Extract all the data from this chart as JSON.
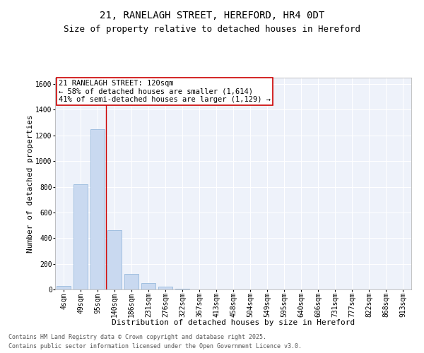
{
  "title_line1": "21, RANELAGH STREET, HEREFORD, HR4 0DT",
  "title_line2": "Size of property relative to detached houses in Hereford",
  "xlabel": "Distribution of detached houses by size in Hereford",
  "ylabel": "Number of detached properties",
  "categories": [
    "4sqm",
    "49sqm",
    "95sqm",
    "140sqm",
    "186sqm",
    "231sqm",
    "276sqm",
    "322sqm",
    "367sqm",
    "413sqm",
    "458sqm",
    "504sqm",
    "549sqm",
    "595sqm",
    "640sqm",
    "686sqm",
    "731sqm",
    "777sqm",
    "822sqm",
    "868sqm",
    "913sqm"
  ],
  "values": [
    30,
    820,
    1250,
    460,
    120,
    50,
    20,
    8,
    2,
    0,
    0,
    0,
    0,
    0,
    0,
    0,
    0,
    0,
    0,
    0,
    0
  ],
  "bar_color": "#c9d9f0",
  "bar_edge_color": "#8ab0d8",
  "background_color": "#eef2fa",
  "grid_color": "#ffffff",
  "annotation_box_text": "21 RANELAGH STREET: 120sqm\n← 58% of detached houses are smaller (1,614)\n41% of semi-detached houses are larger (1,129) →",
  "vline_x_index": 2.5,
  "vline_color": "#cc0000",
  "ylim": [
    0,
    1650
  ],
  "footer_line1": "Contains HM Land Registry data © Crown copyright and database right 2025.",
  "footer_line2": "Contains public sector information licensed under the Open Government Licence v3.0.",
  "title_fontsize": 10,
  "subtitle_fontsize": 9,
  "xlabel_fontsize": 8,
  "ylabel_fontsize": 8,
  "tick_fontsize": 7,
  "footer_fontsize": 6,
  "annotation_fontsize": 7.5
}
